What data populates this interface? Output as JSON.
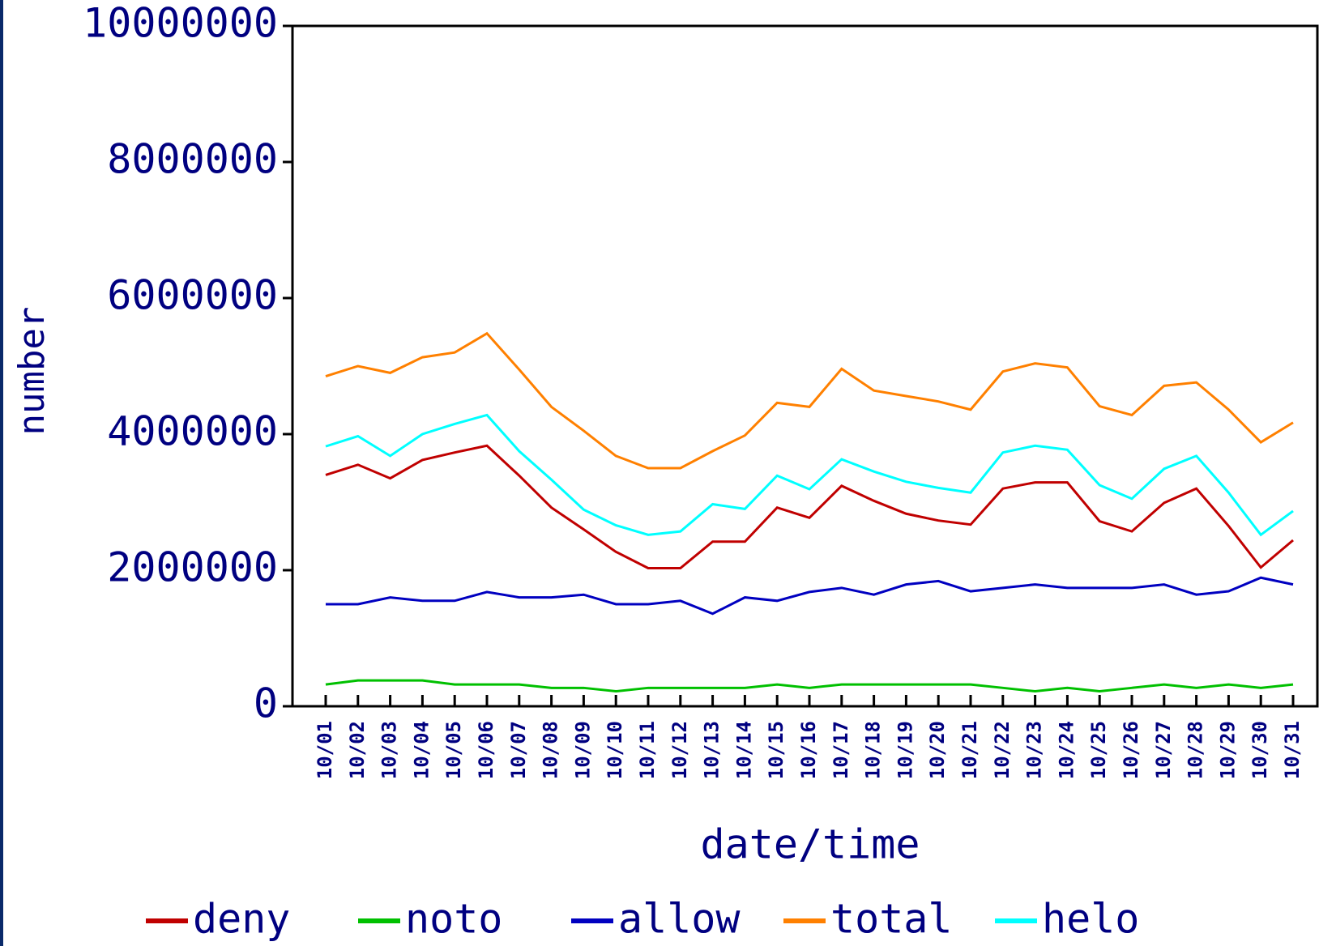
{
  "chart_data": {
    "type": "line",
    "x_label": "date/time",
    "y_label": "number",
    "categories": [
      "10/01",
      "10/02",
      "10/03",
      "10/04",
      "10/05",
      "10/06",
      "10/07",
      "10/08",
      "10/09",
      "10/10",
      "10/11",
      "10/12",
      "10/13",
      "10/14",
      "10/15",
      "10/16",
      "10/17",
      "10/18",
      "10/19",
      "10/20",
      "10/21",
      "10/22",
      "10/23",
      "10/24",
      "10/25",
      "10/26",
      "10/27",
      "10/28",
      "10/29",
      "10/30",
      "10/31"
    ],
    "series": [
      {
        "name": "deny",
        "color": "#c00000",
        "values": [
          3400000,
          3550000,
          3350000,
          3620000,
          3730000,
          3830000,
          3390000,
          2920000,
          2600000,
          2270000,
          2030000,
          2030000,
          2420000,
          2420000,
          2920000,
          2770000,
          3240000,
          3020000,
          2830000,
          2730000,
          2670000,
          3200000,
          3290000,
          3290000,
          2720000,
          2570000,
          2990000,
          3200000,
          2650000,
          2040000,
          2440000
        ]
      },
      {
        "name": "noto",
        "color": "#00c000",
        "values": [
          320000,
          380000,
          380000,
          380000,
          320000,
          320000,
          320000,
          270000,
          270000,
          220000,
          270000,
          270000,
          270000,
          270000,
          320000,
          270000,
          320000,
          320000,
          320000,
          320000,
          320000,
          270000,
          220000,
          270000,
          220000,
          270000,
          320000,
          270000,
          320000,
          270000,
          320000
        ]
      },
      {
        "name": "allow",
        "color": "#0000c0",
        "values": [
          1500000,
          1500000,
          1600000,
          1550000,
          1550000,
          1680000,
          1600000,
          1600000,
          1640000,
          1500000,
          1500000,
          1550000,
          1360000,
          1600000,
          1550000,
          1680000,
          1740000,
          1640000,
          1790000,
          1840000,
          1690000,
          1740000,
          1790000,
          1740000,
          1740000,
          1740000,
          1790000,
          1640000,
          1690000,
          1890000,
          1790000
        ]
      },
      {
        "name": "total",
        "color": "#ff8000",
        "values": [
          4850000,
          5000000,
          4900000,
          5130000,
          5200000,
          5480000,
          4950000,
          4400000,
          4050000,
          3680000,
          3500000,
          3500000,
          3750000,
          3980000,
          4460000,
          4400000,
          4960000,
          4640000,
          4560000,
          4480000,
          4360000,
          4920000,
          5040000,
          4980000,
          4410000,
          4280000,
          4710000,
          4760000,
          4360000,
          3880000,
          4170000
        ]
      },
      {
        "name": "helo",
        "color": "#00ffff",
        "values": [
          3820000,
          3970000,
          3680000,
          4000000,
          4150000,
          4280000,
          3750000,
          3330000,
          2890000,
          2660000,
          2520000,
          2570000,
          2970000,
          2900000,
          3390000,
          3190000,
          3630000,
          3450000,
          3300000,
          3210000,
          3140000,
          3730000,
          3830000,
          3770000,
          3250000,
          3050000,
          3490000,
          3680000,
          3140000,
          2520000,
          2870000
        ]
      }
    ],
    "ylim": [
      0,
      10000000
    ],
    "yticks": [
      0,
      2000000,
      4000000,
      6000000,
      8000000,
      10000000
    ]
  }
}
